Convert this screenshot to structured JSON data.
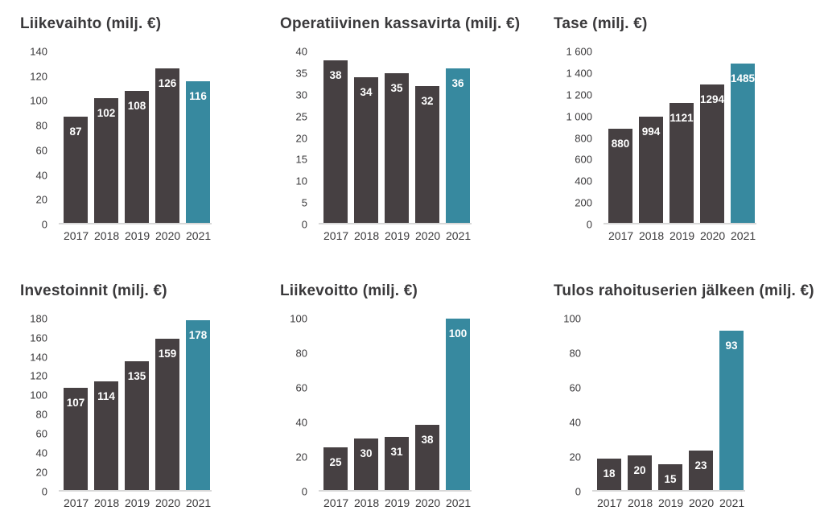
{
  "colors": {
    "bar": "#464042",
    "highlight_bar": "#37899f",
    "baseline": "#d8d8d8",
    "text": "#3a393b",
    "value_label": "#ffffff",
    "background": "#ffffff"
  },
  "chart_data": [
    {
      "type": "bar",
      "title": "Liikevaihto (milj. €)",
      "categories": [
        "2017",
        "2018",
        "2019",
        "2020",
        "2021"
      ],
      "values": [
        87,
        102,
        108,
        126,
        116
      ],
      "highlight_index": 4,
      "ylim": [
        0,
        140
      ],
      "ytick_values": [
        0,
        20,
        40,
        60,
        80,
        100,
        120,
        140
      ],
      "ytick_labels": [
        "0",
        "20",
        "40",
        "60",
        "80",
        "100",
        "120",
        "140"
      ],
      "grid": false,
      "legend": "none",
      "value_labels_shown": true
    },
    {
      "type": "bar",
      "title": "Operatiivinen kassavirta (milj. €)",
      "categories": [
        "2017",
        "2018",
        "2019",
        "2020",
        "2021"
      ],
      "values": [
        38,
        34,
        35,
        32,
        36
      ],
      "highlight_index": 4,
      "ylim": [
        0,
        40
      ],
      "ytick_values": [
        0,
        5,
        10,
        15,
        20,
        25,
        30,
        35,
        40
      ],
      "ytick_labels": [
        "0",
        "5",
        "10",
        "15",
        "20",
        "25",
        "30",
        "35",
        "40"
      ],
      "grid": false,
      "legend": "none",
      "value_labels_shown": true
    },
    {
      "type": "bar",
      "title": "Tase (milj. €)",
      "categories": [
        "2017",
        "2018",
        "2019",
        "2020",
        "2021"
      ],
      "values": [
        880,
        994,
        1121,
        1294,
        1485
      ],
      "highlight_index": 4,
      "ylim": [
        0,
        1600
      ],
      "ytick_values": [
        0,
        200,
        400,
        600,
        800,
        1000,
        1200,
        1400,
        1600
      ],
      "ytick_labels": [
        "0",
        "200",
        "400",
        "600",
        "800",
        "1 000",
        "1 200",
        "1 400",
        "1 600"
      ],
      "grid": false,
      "legend": "none",
      "value_labels_shown": true
    },
    {
      "type": "bar",
      "title": "Investoinnit (milj. €)",
      "categories": [
        "2017",
        "2018",
        "2019",
        "2020",
        "2021"
      ],
      "values": [
        107,
        114,
        135,
        159,
        178
      ],
      "highlight_index": 4,
      "ylim": [
        0,
        180
      ],
      "ytick_values": [
        0,
        20,
        40,
        60,
        80,
        100,
        120,
        140,
        160,
        180
      ],
      "ytick_labels": [
        "0",
        "20",
        "40",
        "60",
        "80",
        "100",
        "120",
        "140",
        "160",
        "180"
      ],
      "grid": false,
      "legend": "none",
      "value_labels_shown": true
    },
    {
      "type": "bar",
      "title": "Liikevoitto (milj. €)",
      "categories": [
        "2017",
        "2018",
        "2019",
        "2020",
        "2021"
      ],
      "values": [
        25,
        30,
        31,
        38,
        100
      ],
      "highlight_index": 4,
      "ylim": [
        0,
        100
      ],
      "ytick_values": [
        0,
        20,
        40,
        60,
        80,
        100
      ],
      "ytick_labels": [
        "0",
        "20",
        "40",
        "60",
        "80",
        "100"
      ],
      "grid": false,
      "legend": "none",
      "value_labels_shown": true
    },
    {
      "type": "bar",
      "title": "Tulos rahoituserien jälkeen (milj. €)",
      "categories": [
        "2017",
        "2018",
        "2019",
        "2020",
        "2021"
      ],
      "values": [
        18,
        20,
        15,
        23,
        93
      ],
      "highlight_index": 4,
      "ylim": [
        0,
        100
      ],
      "ytick_values": [
        0,
        20,
        40,
        60,
        80,
        100
      ],
      "ytick_labels": [
        "0",
        "20",
        "40",
        "60",
        "80",
        "100"
      ],
      "grid": false,
      "legend": "none",
      "value_labels_shown": true
    }
  ]
}
